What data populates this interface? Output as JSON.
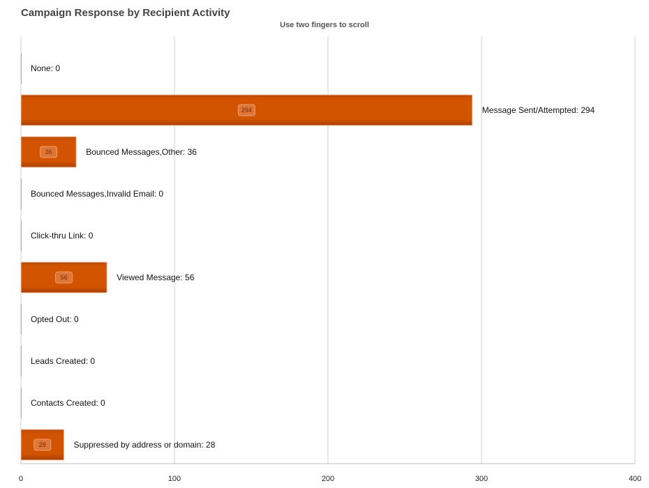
{
  "title": "Campaign Response by Recipient Activity",
  "subtitle": "Use two fingers to scroll",
  "colors": {
    "bar": "#d35400",
    "bar_dark": "#a84000",
    "grid": "#cfcfcf",
    "axis": "#bdbdbd"
  },
  "chart_data": {
    "type": "bar",
    "orientation": "horizontal",
    "title": "Campaign Response by Recipient Activity",
    "categories": [
      "None",
      "Message Sent/Attempted",
      "Bounced Messages,Other",
      "Bounced Messages,Invalid Email",
      "Click-thru Link",
      "Viewed Message",
      "Opted Out",
      "Leads Created",
      "Contacts Created",
      "Suppressed by address or domain"
    ],
    "values": [
      0,
      294,
      36,
      0,
      0,
      56,
      0,
      0,
      0,
      28
    ],
    "xlim": [
      0,
      400
    ],
    "xticks": [
      "0",
      "100",
      "200",
      "300",
      "400"
    ],
    "grid": true,
    "data_labels": [
      "None: 0",
      "Message Sent/Attempted: 294",
      "Bounced Messages,Other: 36",
      "Bounced Messages,Invalid Email: 0",
      "Click-thru Link: 0",
      "Viewed Message: 56",
      "Opted Out: 0",
      "Leads Created: 0",
      "Contacts Created: 0",
      "Suppressed by address or domain: 28"
    ],
    "inbar_labels": [
      "",
      "294",
      "36",
      "",
      "",
      "56",
      "",
      "",
      "",
      "28"
    ]
  }
}
